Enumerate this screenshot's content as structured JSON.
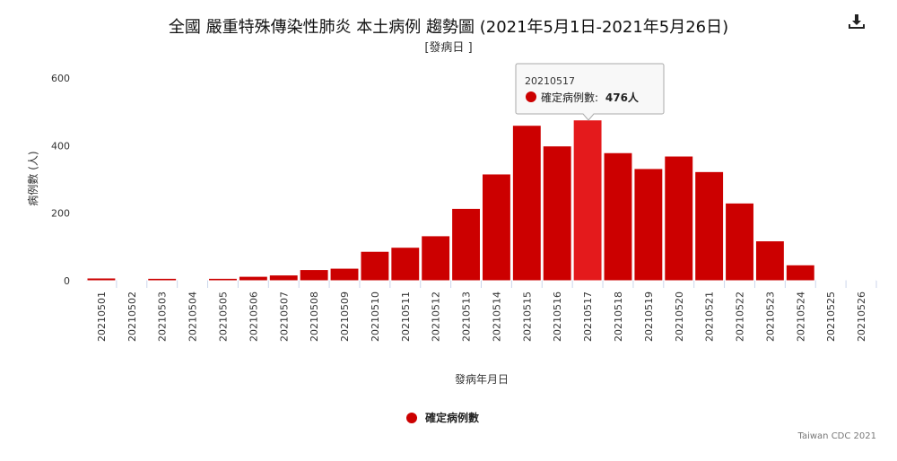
{
  "chart_data": {
    "type": "bar",
    "title": "全國 嚴重特殊傳染性肺炎 本土病例 趨勢圖 (2021年5月1日-2021年5月26日)",
    "subtitle": "[發病日 ]",
    "xlabel": "發病年月日",
    "ylabel": "病例數 (人)",
    "ylim": [
      0,
      600
    ],
    "yticks": [
      0,
      200,
      400,
      600
    ],
    "categories": [
      "20210501",
      "20210502",
      "20210503",
      "20210504",
      "20210505",
      "20210506",
      "20210507",
      "20210508",
      "20210509",
      "20210510",
      "20210511",
      "20210512",
      "20210513",
      "20210514",
      "20210515",
      "20210516",
      "20210517",
      "20210518",
      "20210519",
      "20210520",
      "20210521",
      "20210522",
      "20210523",
      "20210524",
      "20210525",
      "20210526"
    ],
    "series": [
      {
        "name": "確定病例數",
        "values": [
          8,
          1,
          7,
          2,
          7,
          13,
          17,
          33,
          37,
          87,
          99,
          133,
          214,
          316,
          460,
          399,
          476,
          379,
          332,
          369,
          323,
          230,
          118,
          47,
          1,
          1
        ]
      }
    ],
    "highlight_index": 16,
    "legend_position": "bottom-center"
  },
  "colors": {
    "bar": "#cc0000",
    "bar_highlight": "#e41a1c",
    "axis": "#ccd6eb"
  },
  "tooltip": {
    "date": "20210517",
    "label": "確定病例數:",
    "value": "476人"
  },
  "credit": "Taiwan CDC 2021",
  "download_icon": "download-icon"
}
